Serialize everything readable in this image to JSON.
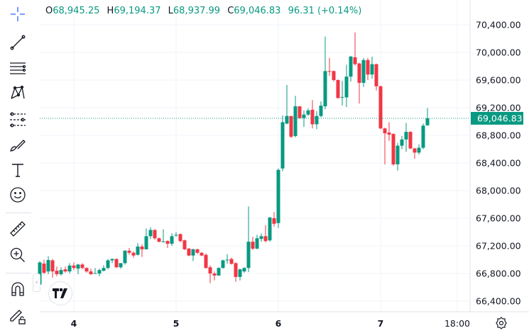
{
  "legend": {
    "open_label": "O",
    "open": "68,945.25",
    "high_label": "H",
    "high": "69,194.37",
    "low_label": "L",
    "low": "68,937.99",
    "close_label": "C",
    "close": "69,046.83",
    "change": "96.31 (+0.14%)"
  },
  "toolbar": {
    "tools": [
      "crosshair-icon",
      "trend-line-icon",
      "horizontal-lines-icon",
      "patterns-icon",
      "fib-icon",
      "brush-icon",
      "text-icon",
      "emoji-icon",
      "ruler-icon",
      "zoom-in-icon",
      "magnet-icon",
      "lock-drawings-icon"
    ]
  },
  "logo": "TV",
  "collapse_glyph": "‹",
  "colors": {
    "up": "#089981",
    "down": "#f23645",
    "grid": "#f0f3fa",
    "last_price_bg": "#089981"
  },
  "chart_data": {
    "type": "candlestick",
    "ylim": [
      66300,
      70550
    ],
    "y_ticks": [
      "70,400.00",
      "70,000.00",
      "69,600.00",
      "69,200.00",
      "68,800.00",
      "68,400.00",
      "68,000.00",
      "67,600.00",
      "67,200.00",
      "66,800.00",
      "66,400.00"
    ],
    "y_tick_values": [
      70400,
      70000,
      69600,
      69200,
      68800,
      68400,
      68000,
      67600,
      67200,
      66800,
      66400
    ],
    "x_ticks": [
      "4",
      "5",
      "6",
      "7",
      "18:00"
    ],
    "last_price": "69,046.83",
    "last_price_value": 69046.83,
    "grid": true,
    "candles_ohlc": [
      [
        66640,
        66980,
        66600,
        66960
      ],
      [
        66944,
        67000,
        66790,
        66810
      ],
      [
        66830,
        67050,
        66790,
        66995
      ],
      [
        66990,
        67010,
        66740,
        66830
      ],
      [
        66840,
        66900,
        66760,
        66790
      ],
      [
        66790,
        66890,
        66770,
        66850
      ],
      [
        66860,
        66900,
        66810,
        66830
      ],
      [
        66830,
        66950,
        66800,
        66915
      ],
      [
        66915,
        66960,
        66850,
        66880
      ],
      [
        66870,
        66940,
        66790,
        66930
      ],
      [
        66930,
        66950,
        66860,
        66880
      ],
      [
        66880,
        66890,
        66810,
        66830
      ],
      [
        66830,
        66870,
        66780,
        66790
      ],
      [
        66800,
        66880,
        66800,
        66805
      ],
      [
        66800,
        66870,
        66760,
        66850
      ],
      [
        66840,
        66920,
        66830,
        66880
      ],
      [
        66880,
        67010,
        66860,
        66990
      ],
      [
        66990,
        67020,
        66950,
        67010
      ],
      [
        67010,
        67020,
        66880,
        66890
      ],
      [
        66890,
        66950,
        66870,
        66950
      ],
      [
        66950,
        67140,
        66930,
        67130
      ],
      [
        67130,
        67170,
        67070,
        67100
      ],
      [
        67100,
        67120,
        67030,
        67060
      ],
      [
        67070,
        67240,
        67060,
        67190
      ],
      [
        67190,
        67220,
        67040,
        67150
      ],
      [
        67150,
        67450,
        67150,
        67340
      ],
      [
        67340,
        67470,
        67300,
        67430
      ],
      [
        67430,
        67440,
        67290,
        67310
      ],
      [
        67310,
        67320,
        67250,
        67260
      ],
      [
        67260,
        67440,
        67250,
        67265
      ],
      [
        67270,
        67280,
        67170,
        67230
      ],
      [
        67230,
        67380,
        67200,
        67340
      ],
      [
        67350,
        67400,
        67330,
        67360
      ],
      [
        67370,
        67380,
        67250,
        67270
      ],
      [
        67280,
        67290,
        67140,
        67150
      ],
      [
        67160,
        67170,
        67050,
        67060
      ],
      [
        67060,
        67160,
        66980,
        67150
      ],
      [
        67150,
        67160,
        67080,
        67100
      ],
      [
        67100,
        67110,
        67050,
        67060
      ],
      [
        67070,
        67090,
        66870,
        66880
      ],
      [
        66890,
        66920,
        66660,
        66800
      ],
      [
        66800,
        66830,
        66700,
        66770
      ],
      [
        66770,
        66890,
        66770,
        66880
      ],
      [
        66880,
        67000,
        66870,
        66990
      ],
      [
        66990,
        67080,
        66940,
        67000
      ],
      [
        67010,
        67030,
        66930,
        66940
      ],
      [
        66950,
        66960,
        66680,
        66750
      ],
      [
        66750,
        66870,
        66700,
        66860
      ],
      [
        66830,
        66890,
        66810,
        66880
      ],
      [
        66880,
        67770,
        66820,
        67260
      ],
      [
        67260,
        67330,
        67140,
        67160
      ],
      [
        67160,
        67360,
        67150,
        67310
      ],
      [
        67300,
        67380,
        67260,
        67340
      ],
      [
        67340,
        67500,
        67250,
        67270
      ],
      [
        67280,
        67620,
        67260,
        67610
      ],
      [
        67600,
        67690,
        67480,
        67520
      ],
      [
        67530,
        68320,
        67460,
        68300
      ],
      [
        68320,
        69090,
        68280,
        68990
      ],
      [
        68970,
        69530,
        68960,
        69080
      ],
      [
        69080,
        69080,
        68760,
        68780
      ],
      [
        68790,
        69370,
        68770,
        69220
      ],
      [
        69220,
        69220,
        69040,
        69050
      ],
      [
        69050,
        69160,
        68920,
        69100
      ],
      [
        69100,
        69190,
        69080,
        69160
      ],
      [
        69170,
        69310,
        68900,
        68960
      ],
      [
        68960,
        69150,
        68890,
        69080
      ],
      [
        69080,
        69290,
        69060,
        69230
      ],
      [
        69220,
        70230,
        69180,
        69730
      ],
      [
        69730,
        69920,
        69660,
        69720
      ],
      [
        69730,
        69740,
        69580,
        69600
      ],
      [
        69600,
        69610,
        69330,
        69340
      ],
      [
        69350,
        69590,
        69230,
        69355
      ],
      [
        69350,
        69820,
        69210,
        69650
      ],
      [
        69650,
        69950,
        69580,
        69940
      ],
      [
        69930,
        70290,
        69810,
        69830
      ],
      [
        69840,
        69850,
        69260,
        69560
      ],
      [
        69560,
        69920,
        69500,
        69890
      ],
      [
        69890,
        69920,
        69600,
        69680
      ],
      [
        69680,
        69940,
        69620,
        69830
      ],
      [
        69830,
        69840,
        69450,
        69510
      ],
      [
        69510,
        69520,
        68890,
        68900
      ],
      [
        68900,
        68910,
        68380,
        68830
      ],
      [
        68840,
        68990,
        68720,
        68810
      ],
      [
        68820,
        68830,
        68360,
        68380
      ],
      [
        68380,
        68690,
        68290,
        68650
      ],
      [
        68650,
        68790,
        68600,
        68740
      ],
      [
        68740,
        68980,
        68560,
        68850
      ],
      [
        68850,
        68860,
        68600,
        68610
      ],
      [
        68610,
        68620,
        68460,
        68550
      ],
      [
        68550,
        68670,
        68520,
        68620
      ],
      [
        68620,
        68970,
        68600,
        68940
      ],
      [
        68945.25,
        69194.37,
        68937.99,
        69046.83
      ]
    ]
  }
}
